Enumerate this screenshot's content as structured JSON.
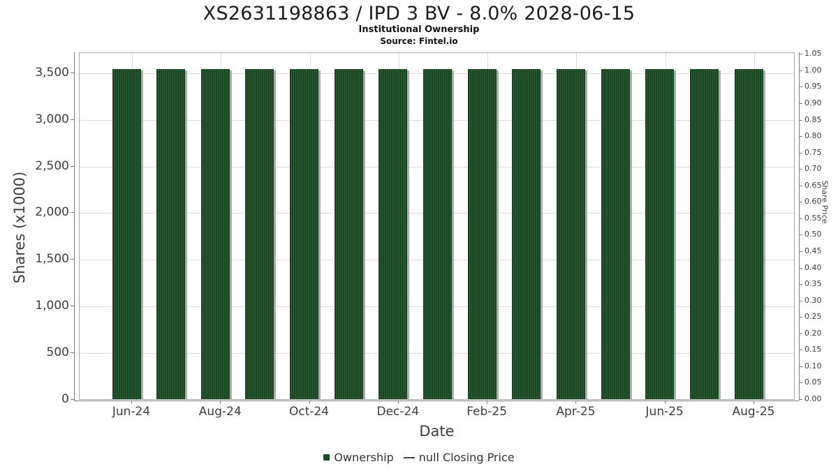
{
  "header": {
    "title": "XS2631198863 / IPD 3 BV - 8.0% 2028-06-15",
    "subtitle": "Institutional Ownership",
    "source": "Source: Fintel.io"
  },
  "chart_data": {
    "type": "bar",
    "title": "XS2631198863 / IPD 3 BV - 8.0% 2028-06-15",
    "subtitle": "Institutional Ownership",
    "source": "Source: Fintel.io",
    "xlabel": "Date",
    "ylabel_left": "Shares (x1000)",
    "ylabel_right": "Share Price",
    "series_name": "Ownership",
    "categories": [
      "Jun-24",
      "Jul-24",
      "Aug-24",
      "Sep-24",
      "Oct-24",
      "Nov-24",
      "Dec-24",
      "Jan-25",
      "Feb-25",
      "Mar-25",
      "Apr-25",
      "May-25",
      "Jun-25",
      "Jul-25",
      "Aug-25"
    ],
    "values": [
      3537,
      3537,
      3537,
      3537,
      3537,
      3537,
      3537,
      3537,
      3537,
      3537,
      3537,
      3537,
      3537,
      3537,
      3537
    ],
    "x_tick_labels": [
      "Jun-24",
      "Aug-24",
      "Oct-24",
      "Dec-24",
      "Feb-25",
      "Apr-25",
      "Jun-25",
      "Aug-25"
    ],
    "x_tick_every": 2,
    "ylim_left": [
      0,
      3715
    ],
    "yticks_left": [
      {
        "value": 0,
        "label": "0"
      },
      {
        "value": 500,
        "label": "500"
      },
      {
        "value": 1000,
        "label": "1,000"
      },
      {
        "value": 1500,
        "label": "1,500"
      },
      {
        "value": 2000,
        "label": "2,000"
      },
      {
        "value": 2500,
        "label": "2,500"
      },
      {
        "value": 3000,
        "label": "3,000"
      },
      {
        "value": 3500,
        "label": "3,500"
      }
    ],
    "ylim_right": [
      0,
      1.055
    ],
    "yticks_right_step": 0.05,
    "yticks_right_labels": [
      "0.00",
      "0.05",
      "0.10",
      "0.15",
      "0.20",
      "0.25",
      "0.30",
      "0.35",
      "0.40",
      "0.45",
      "0.50",
      "0.55",
      "0.60",
      "0.65",
      "0.70",
      "0.75",
      "0.80",
      "0.85",
      "0.90",
      "0.95",
      "1.00",
      "1.05"
    ],
    "grid": true,
    "legend_position": "bottom",
    "legend": [
      {
        "label": "Ownership",
        "marker": "square",
        "color": "#1d4a24"
      },
      {
        "label": "null Closing Price",
        "marker": "line",
        "color": "#474747"
      }
    ],
    "colors": {
      "bar": "#1d4a24",
      "bar_stripe": "#2e5f36",
      "bar_shadow": "#919191",
      "grid": "#dcdcdc",
      "axis": "#7f7f7f",
      "plot_border": "#a6a6a6",
      "tick_text": "#3d3d3d"
    }
  }
}
